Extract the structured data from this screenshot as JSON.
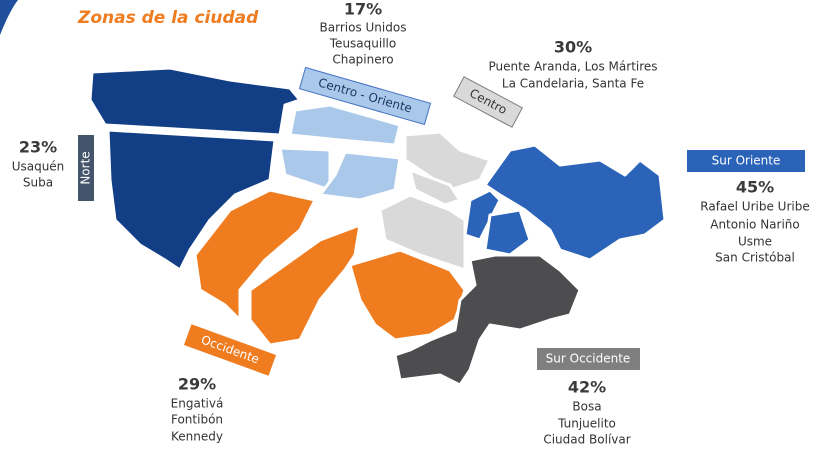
{
  "title": "Zonas de la ciudad",
  "zones": [
    {
      "name": "Norte",
      "percent": "23%",
      "localities": [
        "Usaquén",
        "Suba"
      ]
    },
    {
      "name": "Centro - Oriente",
      "percent": "17%",
      "localities": [
        "Barrios Unidos",
        "Teusaquillo",
        "Chapinero"
      ]
    },
    {
      "name": "Centro",
      "percent": "30%",
      "localities": [
        "Puente Aranda, Los Mártires",
        "La Candelaria, Santa Fe"
      ]
    },
    {
      "name": "Sur Oriente",
      "percent": "45%",
      "localities": [
        "Rafael Uribe Uribe",
        "Antonio Nariño",
        "Usme",
        "San Cristóbal"
      ]
    },
    {
      "name": "Sur Occidente",
      "percent": "42%",
      "localities": [
        "Bosa",
        "Tunjuelito",
        "Ciudad Bolívar"
      ]
    },
    {
      "name": "Occidente",
      "percent": "29%",
      "localities": [
        "Engativá",
        "Fontibón",
        "Kennedy"
      ]
    }
  ]
}
